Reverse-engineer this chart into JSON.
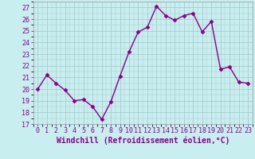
{
  "x": [
    0,
    1,
    2,
    3,
    4,
    5,
    6,
    7,
    8,
    9,
    10,
    11,
    12,
    13,
    14,
    15,
    16,
    17,
    18,
    19,
    20,
    21,
    22,
    23
  ],
  "y": [
    20.0,
    21.2,
    20.5,
    19.9,
    19.0,
    19.1,
    18.5,
    17.4,
    18.9,
    21.1,
    23.2,
    24.9,
    25.3,
    27.1,
    26.3,
    25.9,
    26.3,
    26.5,
    24.9,
    25.8,
    21.7,
    21.9,
    20.6,
    20.5
  ],
  "line_color": "#880088",
  "marker": "D",
  "marker_size": 2.5,
  "bg_color": "#c8eef0",
  "grid_color": "#aacccc",
  "xlabel": "Windchill (Refroidissement éolien,°C)",
  "xlim": [
    -0.5,
    23.5
  ],
  "ylim": [
    17,
    27.5
  ],
  "yticks": [
    17,
    18,
    19,
    20,
    21,
    22,
    23,
    24,
    25,
    26,
    27
  ],
  "xticks": [
    0,
    1,
    2,
    3,
    4,
    5,
    6,
    7,
    8,
    9,
    10,
    11,
    12,
    13,
    14,
    15,
    16,
    17,
    18,
    19,
    20,
    21,
    22,
    23
  ],
  "tick_label_fontsize": 6.0,
  "xlabel_fontsize": 7.0,
  "line_width": 1.0
}
